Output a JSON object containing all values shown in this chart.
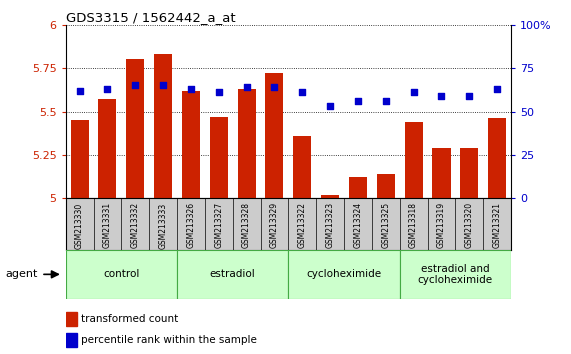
{
  "title": "GDS3315 / 1562442_a_at",
  "samples": [
    "GSM213330",
    "GSM213331",
    "GSM213332",
    "GSM213333",
    "GSM213326",
    "GSM213327",
    "GSM213328",
    "GSM213329",
    "GSM213322",
    "GSM213323",
    "GSM213324",
    "GSM213325",
    "GSM213318",
    "GSM213319",
    "GSM213320",
    "GSM213321"
  ],
  "bar_values": [
    5.45,
    5.57,
    5.8,
    5.83,
    5.62,
    5.47,
    5.63,
    5.72,
    5.36,
    5.02,
    5.12,
    5.14,
    5.44,
    5.29,
    5.29,
    5.46
  ],
  "dot_values": [
    62,
    63,
    65,
    65,
    63,
    61,
    64,
    64,
    61,
    53,
    56,
    56,
    61,
    59,
    59,
    63
  ],
  "ymin": 5.0,
  "ymax": 6.0,
  "yticks": [
    5.0,
    5.25,
    5.5,
    5.75,
    6.0
  ],
  "ytick_labels": [
    "5",
    "5.25",
    "5.5",
    "5.75",
    "6"
  ],
  "y2min": 0,
  "y2max": 100,
  "y2ticks": [
    0,
    25,
    50,
    75,
    100
  ],
  "y2ticklabels": [
    "0",
    "25",
    "50",
    "75",
    "100%"
  ],
  "bar_color": "#cc2200",
  "dot_color": "#0000cc",
  "groups": [
    {
      "label": "control",
      "start": 0,
      "end": 3
    },
    {
      "label": "estradiol",
      "start": 4,
      "end": 7
    },
    {
      "label": "cycloheximide",
      "start": 8,
      "end": 11
    },
    {
      "label": "estradiol and\ncycloheximide",
      "start": 12,
      "end": 15
    }
  ],
  "group_color": "#ccffcc",
  "group_border_color": "#44aa44",
  "sample_bg_color": "#cccccc",
  "legend_bar_label": "transformed count",
  "legend_dot_label": "percentile rank within the sample",
  "agent_label": "agent"
}
